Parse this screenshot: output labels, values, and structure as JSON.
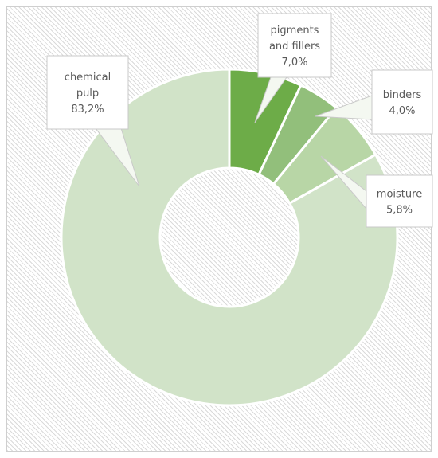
{
  "chart_data": {
    "type": "pie",
    "variant": "donut",
    "title": "",
    "legend": "none",
    "start_angle_deg": 0,
    "direction": "clockwise",
    "slices": [
      {
        "name": "pigments and fillers",
        "label_lines": [
          "pigments",
          "and fillers"
        ],
        "percent_label": "7,0%",
        "value": 7.0,
        "color": "#6dac48"
      },
      {
        "name": "binders",
        "label_lines": [
          "binders"
        ],
        "percent_label": "4,0%",
        "value": 4.0,
        "color": "#92bf7b"
      },
      {
        "name": "moisture",
        "label_lines": [
          "moisture"
        ],
        "percent_label": "5,8%",
        "value": 5.8,
        "color": "#b8d6a6"
      },
      {
        "name": "chemical pulp",
        "label_lines": [
          "chemical",
          "pulp"
        ],
        "percent_label": "83,2%",
        "value": 83.2,
        "color": "#d1e3c8"
      }
    ]
  }
}
